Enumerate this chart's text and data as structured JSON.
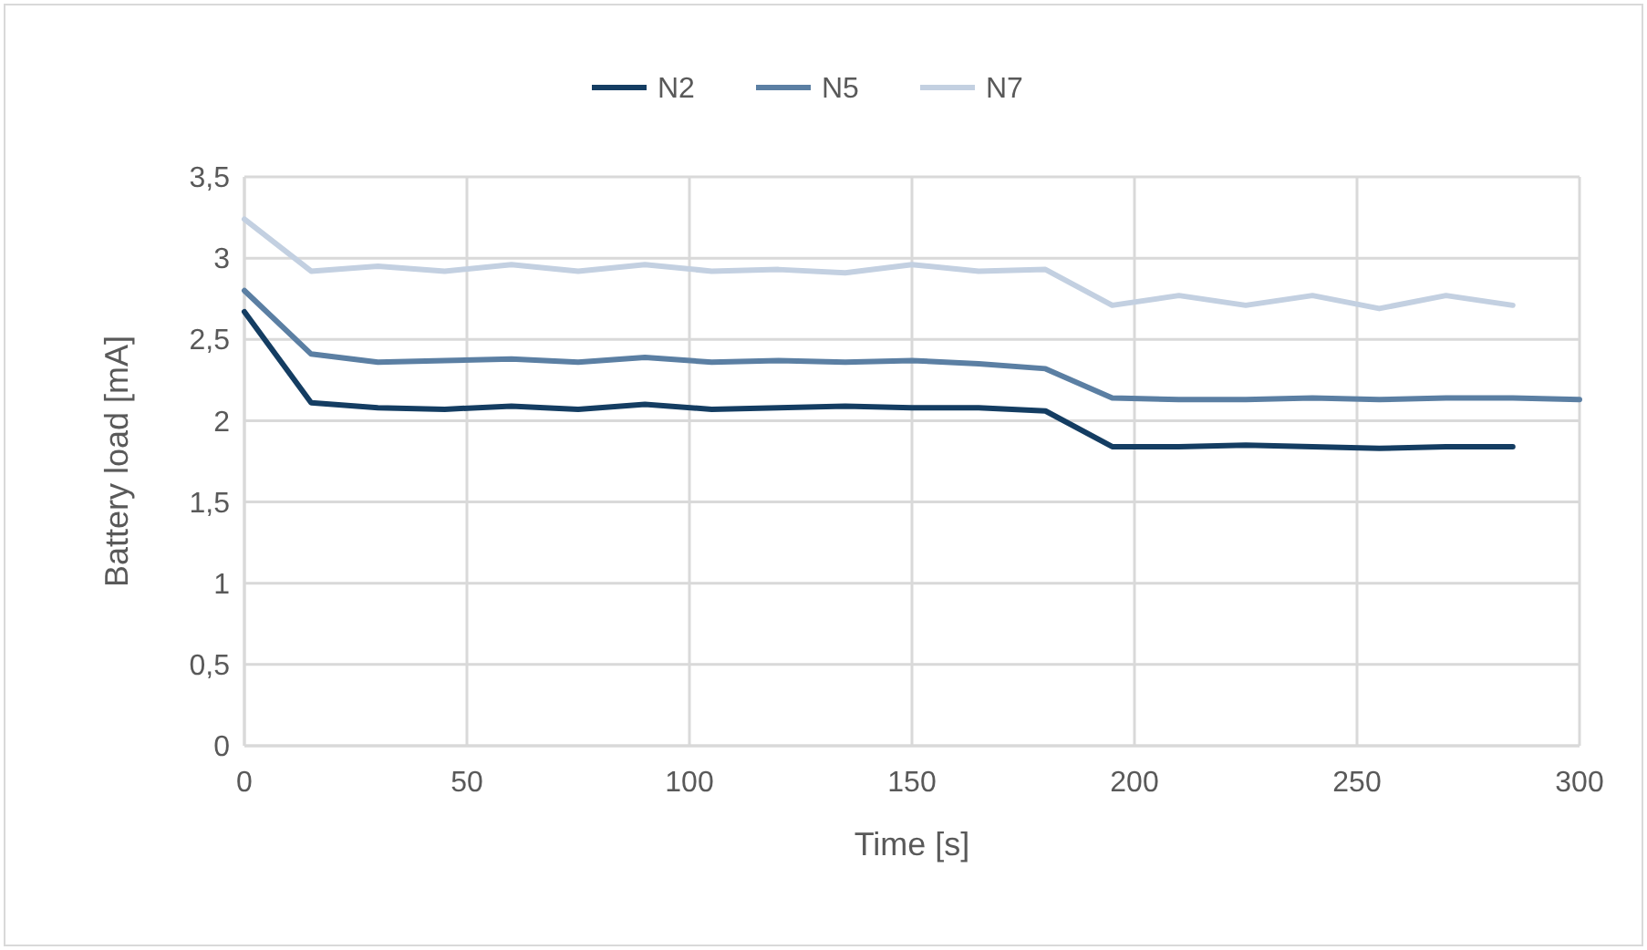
{
  "chart_data": {
    "type": "line",
    "xlabel": "Time [s]",
    "ylabel": "Battery load [mA]",
    "x": [
      0,
      15,
      30,
      45,
      60,
      75,
      90,
      105,
      120,
      135,
      150,
      165,
      180,
      195,
      210,
      225,
      240,
      255,
      270,
      285,
      300
    ],
    "series": [
      {
        "name": "N2",
        "color": "#143d62",
        "values": [
          2.67,
          2.11,
          2.08,
          2.07,
          2.09,
          2.07,
          2.1,
          2.07,
          2.08,
          2.09,
          2.08,
          2.08,
          2.06,
          1.84,
          1.84,
          1.85,
          1.84,
          1.83,
          1.84,
          1.84,
          null
        ]
      },
      {
        "name": "N5",
        "color": "#5b7fa3",
        "values": [
          2.8,
          2.41,
          2.36,
          2.37,
          2.38,
          2.36,
          2.39,
          2.36,
          2.37,
          2.36,
          2.37,
          2.35,
          2.32,
          2.14,
          2.13,
          2.13,
          2.14,
          2.13,
          2.14,
          2.14,
          2.13
        ]
      },
      {
        "name": "N7",
        "color": "#c3d0e1",
        "values": [
          3.24,
          2.92,
          2.95,
          2.92,
          2.96,
          2.92,
          2.96,
          2.92,
          2.93,
          2.91,
          2.96,
          2.92,
          2.93,
          2.71,
          2.77,
          2.71,
          2.77,
          2.69,
          2.77,
          2.71,
          null
        ]
      }
    ],
    "xlim": [
      0,
      300
    ],
    "xticks": [
      0,
      50,
      100,
      150,
      200,
      250,
      300
    ],
    "ylim": [
      0,
      3.5
    ],
    "yticks": [
      0,
      {
        "value": 0.5,
        "label": "0,5"
      },
      1,
      {
        "value": 1.5,
        "label": "1,5"
      },
      2,
      {
        "value": 2.5,
        "label": "2,5"
      },
      3,
      {
        "value": 3.5,
        "label": "3,5"
      }
    ],
    "grid": true,
    "legend": "top",
    "marker": "none",
    "line_style": "solid"
  }
}
